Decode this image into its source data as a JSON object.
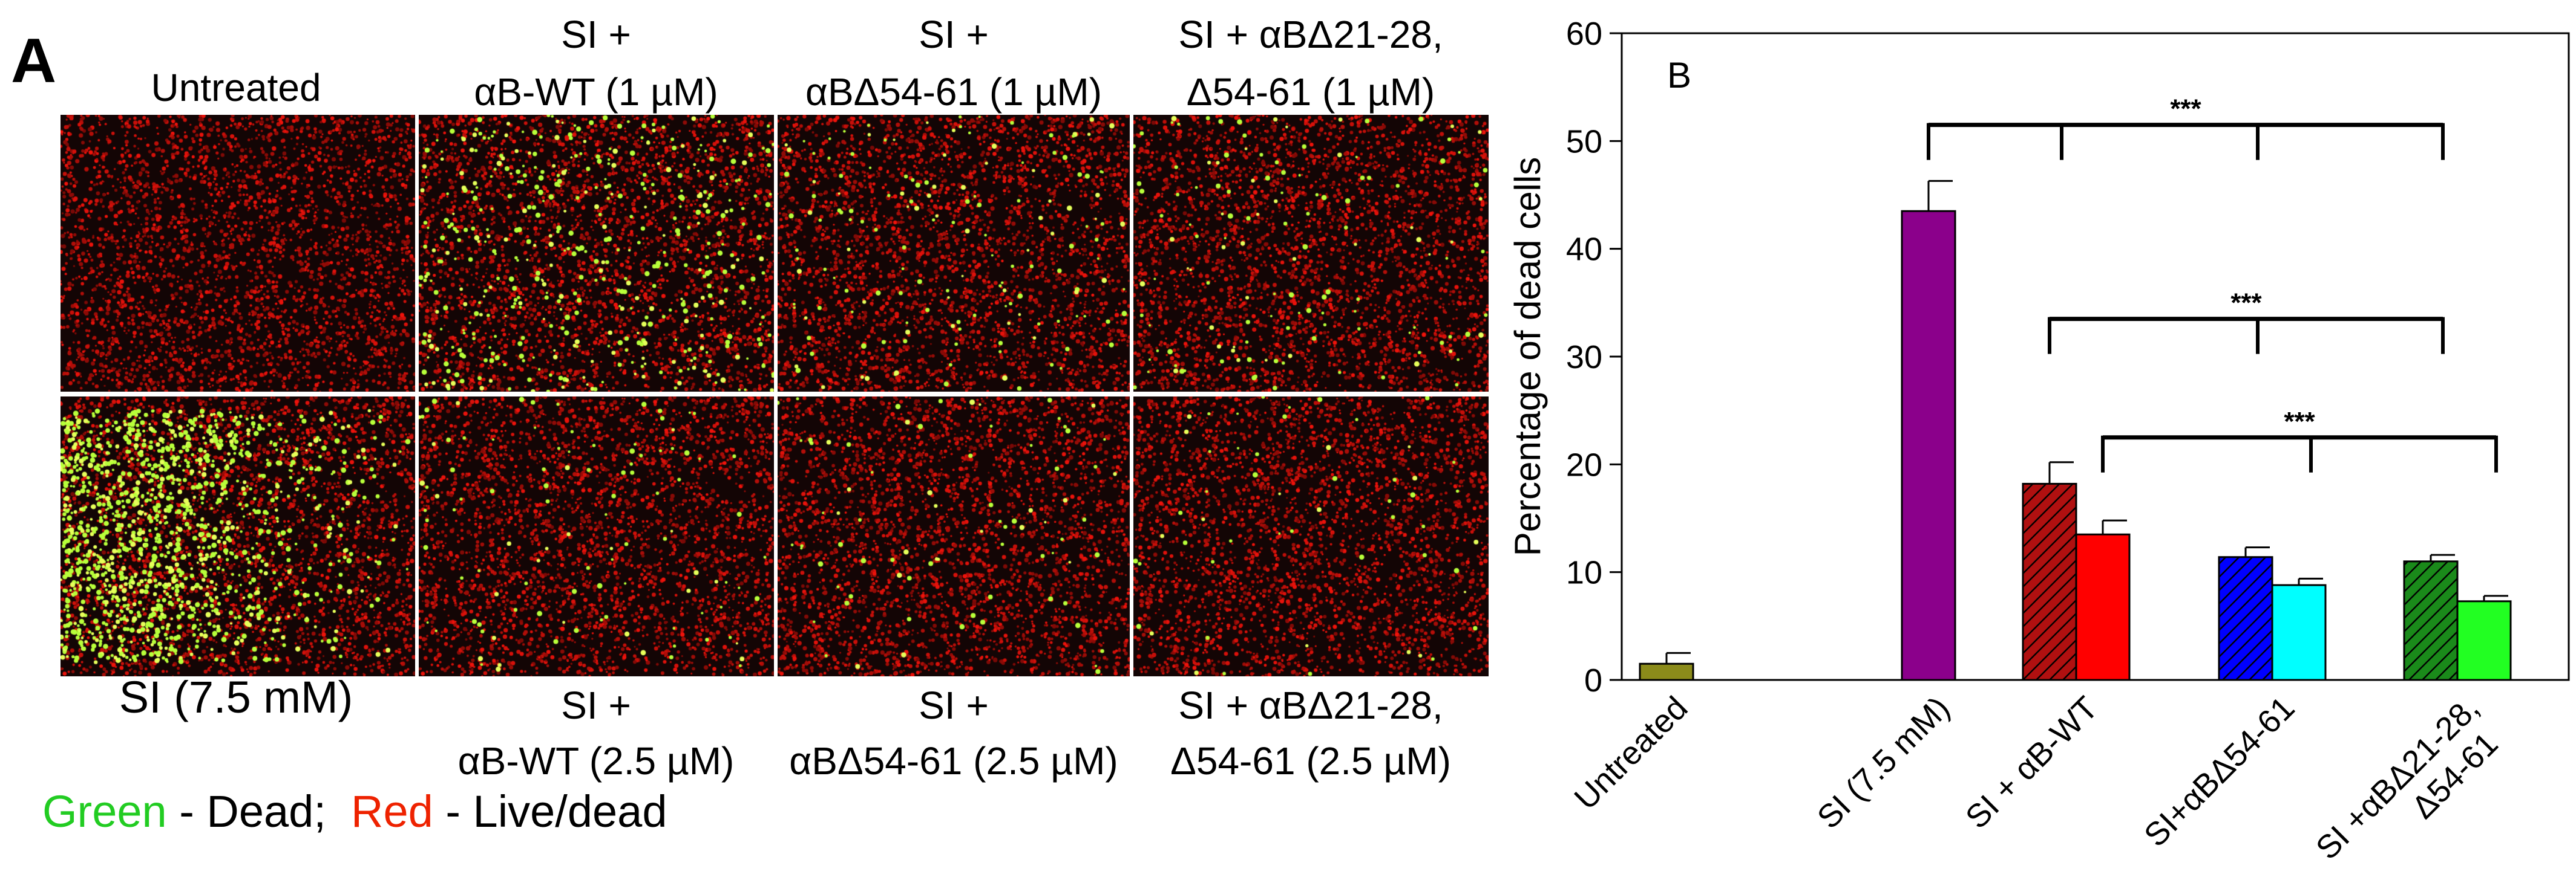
{
  "panel_a": {
    "letter": "A",
    "top_labels": [
      [
        "Untreated"
      ],
      [
        "SI +",
        "αB-WT (1 µM)"
      ],
      [
        "SI +",
        "αBΔ54-61 (1 µM)"
      ],
      [
        "SI + αBΔ21-28,",
        "Δ54-61 (1 µM)"
      ]
    ],
    "bottom_labels": [
      [
        "SI (7.5 mM)"
      ],
      [
        "SI +",
        "αB-WT (2.5 µM)"
      ],
      [
        "SI +",
        "αBΔ54-61 (2.5 µM)"
      ],
      [
        "SI + αBΔ21-28,",
        "Δ54-61 (2.5 µM)"
      ]
    ],
    "legend": {
      "green_word": "Green",
      "green_text": " - Dead;  ",
      "red_word": "Red",
      "red_text": " - Live/dead",
      "green_color": "#22cc22",
      "red_color": "#ee2200"
    },
    "dead_cell_density": {
      "top": [
        0.0,
        0.35,
        0.12,
        0.1
      ],
      "bottom": [
        1.0,
        0.08,
        0.06,
        0.04
      ]
    }
  },
  "chart_data": {
    "type": "bar",
    "panel_letter": "B",
    "ylabel": "Percentage of dead cells",
    "ylim": [
      0,
      60
    ],
    "yticks": [
      0,
      10,
      20,
      30,
      40,
      50,
      60
    ],
    "categories": [
      "Untreated",
      "SI (7.5 mM)",
      "SI + αB-WT",
      "SI+αBΔ54-61",
      "SI +αBΔ21-28,\nΔ54-61"
    ],
    "bars": [
      {
        "category": "Untreated",
        "value": 1.5,
        "error": 1.0,
        "color": "#8b8b1a",
        "hatch": false
      },
      {
        "category": "SI (7.5 mM)",
        "value": 43.5,
        "error": 2.8,
        "color": "#8b008b",
        "hatch": false
      },
      {
        "category": "SI + αB-WT",
        "value": 18.2,
        "error": 2.0,
        "color": "#b01010",
        "hatch": true
      },
      {
        "category": "SI + αB-WT",
        "value": 13.5,
        "error": 1.3,
        "color": "#ff0000",
        "hatch": false
      },
      {
        "category": "SI+αBΔ54-61",
        "value": 11.4,
        "error": 0.9,
        "color": "#0000ff",
        "hatch": true
      },
      {
        "category": "SI+αBΔ54-61",
        "value": 8.8,
        "error": 0.6,
        "color": "#00ffff",
        "hatch": false
      },
      {
        "category": "SI +αBΔ21-28,\nΔ54-61",
        "value": 11.0,
        "error": 0.6,
        "color": "#1a8a1a",
        "hatch": true
      },
      {
        "category": "SI +αBΔ21-28,\nΔ54-61",
        "value": 7.3,
        "error": 0.5,
        "color": "#22ff22",
        "hatch": false
      }
    ],
    "significance": [
      {
        "label": "***",
        "from_bar": 1,
        "to_bars": [
          2,
          4,
          6
        ],
        "y": 51.5
      },
      {
        "label": "***",
        "from_bar": 2,
        "to_bars": [
          4,
          6
        ],
        "y": 33.5
      },
      {
        "label": "***",
        "from_bar": 3,
        "to_bars": [
          5,
          7
        ],
        "y": 22.5
      }
    ]
  }
}
